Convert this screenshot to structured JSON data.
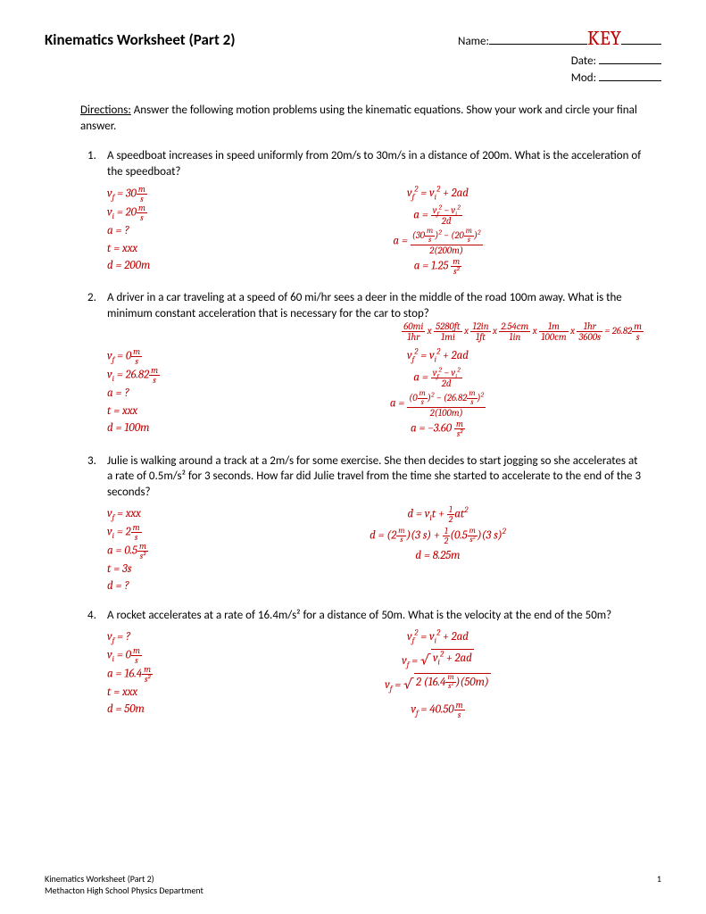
{
  "colors": {
    "accent": "#c00000",
    "text": "#000000",
    "background": "#ffffff"
  },
  "header": {
    "title": "Kinematics Worksheet (Part 2)",
    "name_label": "Name:",
    "key": "KEY",
    "date_label": "Date:",
    "mod_label": "Mod:"
  },
  "directions": {
    "label": "Directions:",
    "text": "Answer the following motion problems using the kinematic equations.  Show your work and circle your final answer."
  },
  "problems": [
    {
      "num": "1.",
      "text": "A speedboat increases in speed uniformly from 20m/s to 30m/s in a distance of 200m. What is the acceleration of the speedboat?",
      "givens": [
        {
          "sym": "v",
          "sub": "f",
          "val": "30",
          "unit_top": "m",
          "unit_bot": "s"
        },
        {
          "sym": "v",
          "sub": "i",
          "val": "20",
          "unit_top": "m",
          "unit_bot": "s"
        },
        {
          "sym": "a",
          "val": "?"
        },
        {
          "sym": "t",
          "val": "xxx"
        },
        {
          "sym": "d",
          "val": "200m"
        }
      ],
      "equations": {
        "formula": "vf² = vi² + 2ad",
        "rearranged_top": "vf² − vi²",
        "rearranged_bot": "2d",
        "sub_top": "(30 m/s)² − (20 m/s)²",
        "sub_bot": "2(200m)",
        "answer": "a = 1.25",
        "ans_unit_top": "m",
        "ans_unit_bot": "s²"
      }
    },
    {
      "num": "2.",
      "text": "A driver in a car traveling at a speed of 60 mi/hr sees a deer in the middle of the road 100m away.  What is the minimum constant acceleration that is necessary for the car to stop?",
      "conversion": {
        "parts": [
          {
            "top": "60mi",
            "bot": "1hr"
          },
          {
            "top": "5280ft",
            "bot": "1mi"
          },
          {
            "top": "12in",
            "bot": "1ft"
          },
          {
            "top": "2.54cm",
            "bot": "1in"
          },
          {
            "top": "1m",
            "bot": "100cm"
          },
          {
            "top": "1hr",
            "bot": "3600s"
          }
        ],
        "result": "26.82",
        "unit_top": "m",
        "unit_bot": "s"
      },
      "givens": [
        {
          "sym": "v",
          "sub": "f",
          "val": "0",
          "unit_top": "m",
          "unit_bot": "s"
        },
        {
          "sym": "v",
          "sub": "i",
          "val": "26.82",
          "unit_top": "m",
          "unit_bot": "s"
        },
        {
          "sym": "a",
          "val": "?"
        },
        {
          "sym": "t",
          "val": "xxx"
        },
        {
          "sym": "d",
          "val": "100m"
        }
      ],
      "equations": {
        "formula": "vf² = vi² + 2ad",
        "rearranged_top": "vf² − vi²",
        "rearranged_bot": "2d",
        "sub_top": "(0 m/s)² − (26.82 m/s)²",
        "sub_bot": "2(100m)",
        "answer": "a = −3.60",
        "ans_unit_top": "m",
        "ans_unit_bot": "s²"
      }
    },
    {
      "num": "3.",
      "text": "Julie is walking around a track at a 2m/s for some exercise.  She then decides to start jogging so she accelerates at a rate of 0.5m/s² for 3 seconds.  How far did Julie travel from the time she started to accelerate to the end of the 3 seconds?",
      "givens": [
        {
          "sym": "v",
          "sub": "f",
          "val": "xxx"
        },
        {
          "sym": "v",
          "sub": "i",
          "val": "2",
          "unit_top": "m",
          "unit_bot": "s"
        },
        {
          "sym": "a",
          "val": "0.5",
          "unit_top": "m",
          "unit_bot": "s²"
        },
        {
          "sym": "t",
          "val": "3s"
        },
        {
          "sym": "d",
          "val": "?"
        }
      ],
      "equations3": {
        "formula": "d = vi t + ½ at²",
        "sub": "d = (2 m/s)(3 s) + ½ (0.5 m/s²)(3 s)²",
        "answer": "d = 8.25m"
      }
    },
    {
      "num": "4.",
      "text": "A rocket accelerates at a rate of 16.4m/s² for a distance of 50m.  What is the velocity at the end of the 50m?",
      "givens": [
        {
          "sym": "v",
          "sub": "f",
          "val": "?"
        },
        {
          "sym": "v",
          "sub": "i",
          "val": "0",
          "unit_top": "m",
          "unit_bot": "s"
        },
        {
          "sym": "a",
          "val": "16.4",
          "unit_top": "m",
          "unit_bot": "s²"
        },
        {
          "sym": "t",
          "val": "xxx"
        },
        {
          "sym": "d",
          "val": "50m"
        }
      ],
      "equations4": {
        "formula": "vf² = vi² + 2ad",
        "sqrt1": "vf = √(vi² + 2ad)",
        "sqrt_body": "2 (16.4 m/s²)(50m)",
        "answer": "vf = 40.50",
        "ans_unit_top": "m",
        "ans_unit_bot": "s"
      }
    }
  ],
  "footer": {
    "line1": "Kinematics Worksheet (Part 2)",
    "line2": "Methacton High School Physics Department",
    "page": "1"
  }
}
